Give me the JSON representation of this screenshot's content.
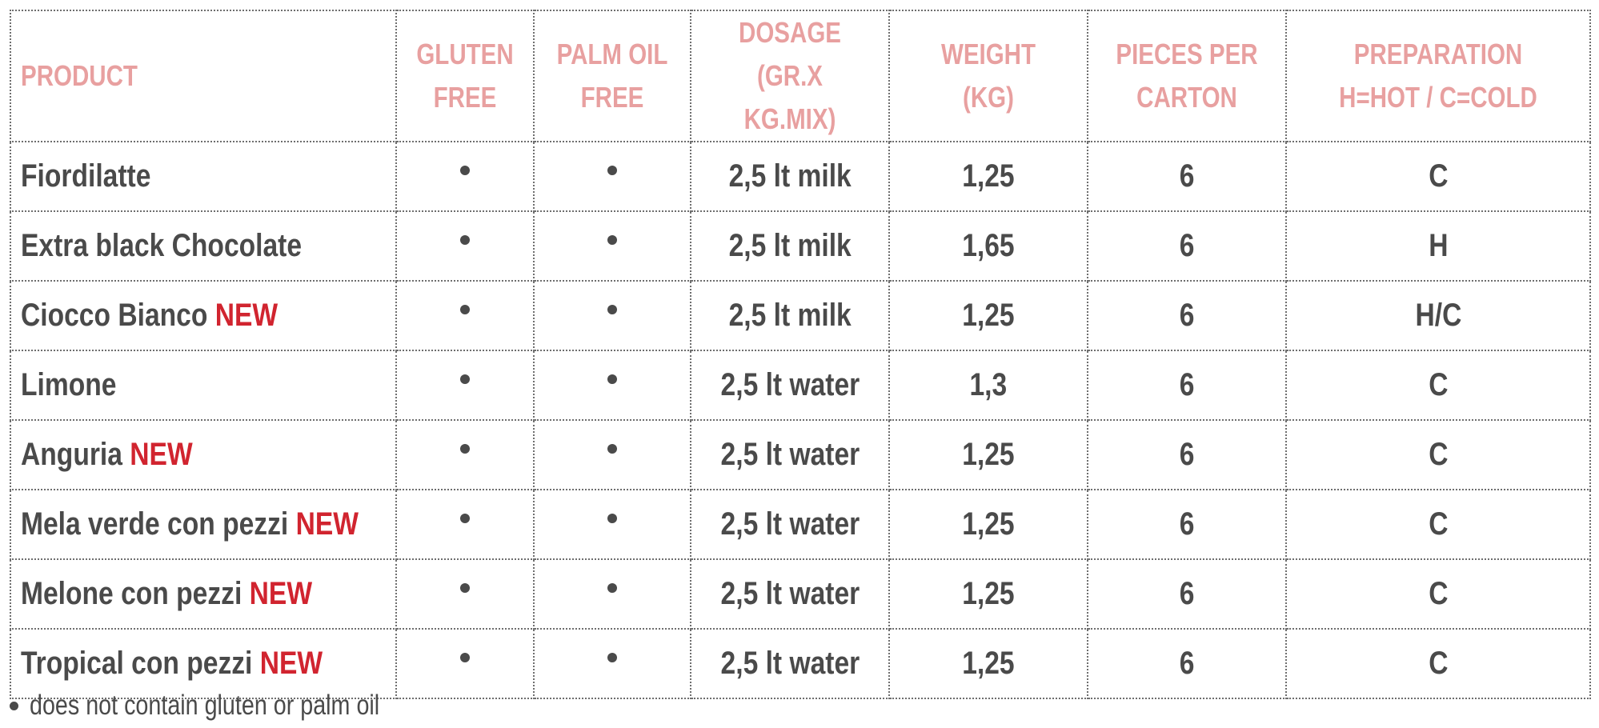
{
  "table": {
    "headers": {
      "product": [
        "PRODUCT"
      ],
      "gluten_free": [
        "GLUTEN",
        "FREE"
      ],
      "palm_oil_free": [
        "PALM OIL",
        "FREE"
      ],
      "dosage": [
        "DOSAGE",
        "(GR.X KG.MIX)"
      ],
      "weight": [
        "WEIGHT",
        "(KG)"
      ],
      "pieces": [
        "PIECES PER",
        "CARTON"
      ],
      "preparation": [
        "PREPARATION",
        "H=HOT / C=COLD"
      ]
    },
    "rows": [
      {
        "product": "Fiordilatte",
        "badge": "",
        "gluten_free": true,
        "palm_oil_free": true,
        "dosage": "2,5 lt milk",
        "weight": "1,25",
        "pieces": "6",
        "preparation": "C"
      },
      {
        "product": "Extra black Chocolate",
        "badge": "",
        "gluten_free": true,
        "palm_oil_free": true,
        "dosage": "2,5 lt milk",
        "weight": "1,65",
        "pieces": "6",
        "preparation": "H"
      },
      {
        "product": "Ciocco Bianco ",
        "badge": "NEW",
        "gluten_free": true,
        "palm_oil_free": true,
        "dosage": "2,5 lt milk",
        "weight": "1,25",
        "pieces": "6",
        "preparation": "H/C"
      },
      {
        "product": "Limone",
        "badge": "",
        "gluten_free": true,
        "palm_oil_free": true,
        "dosage": "2,5 lt water",
        "weight": "1,3",
        "pieces": "6",
        "preparation": "C"
      },
      {
        "product": "Anguria ",
        "badge": "NEW",
        "gluten_free": true,
        "palm_oil_free": true,
        "dosage": "2,5 lt water",
        "weight": "1,25",
        "pieces": "6",
        "preparation": "C"
      },
      {
        "product": "Mela verde con pezzi ",
        "badge": "NEW",
        "gluten_free": true,
        "palm_oil_free": true,
        "dosage": "2,5 lt water",
        "weight": "1,25",
        "pieces": "6",
        "preparation": "C"
      },
      {
        "product": "Melone con pezzi ",
        "badge": "NEW",
        "gluten_free": true,
        "palm_oil_free": true,
        "dosage": "2,5 lt water",
        "weight": "1,25",
        "pieces": "6",
        "preparation": "C"
      },
      {
        "product": "Tropical con pezzi ",
        "badge": "NEW",
        "gluten_free": true,
        "palm_oil_free": true,
        "dosage": "2,5 lt water",
        "weight": "1,25",
        "pieces": "6",
        "preparation": "C"
      }
    ]
  },
  "footnote": {
    "text": "does not contain gluten or palm oil"
  },
  "colors": {
    "header_text": "#e8a0a0",
    "body_text": "#4a4a4a",
    "new_badge": "#d1242f",
    "border": "#6e6e6e"
  },
  "icons": {
    "cell_marker": "bullet-icon",
    "footnote_marker": "bullet-icon"
  }
}
